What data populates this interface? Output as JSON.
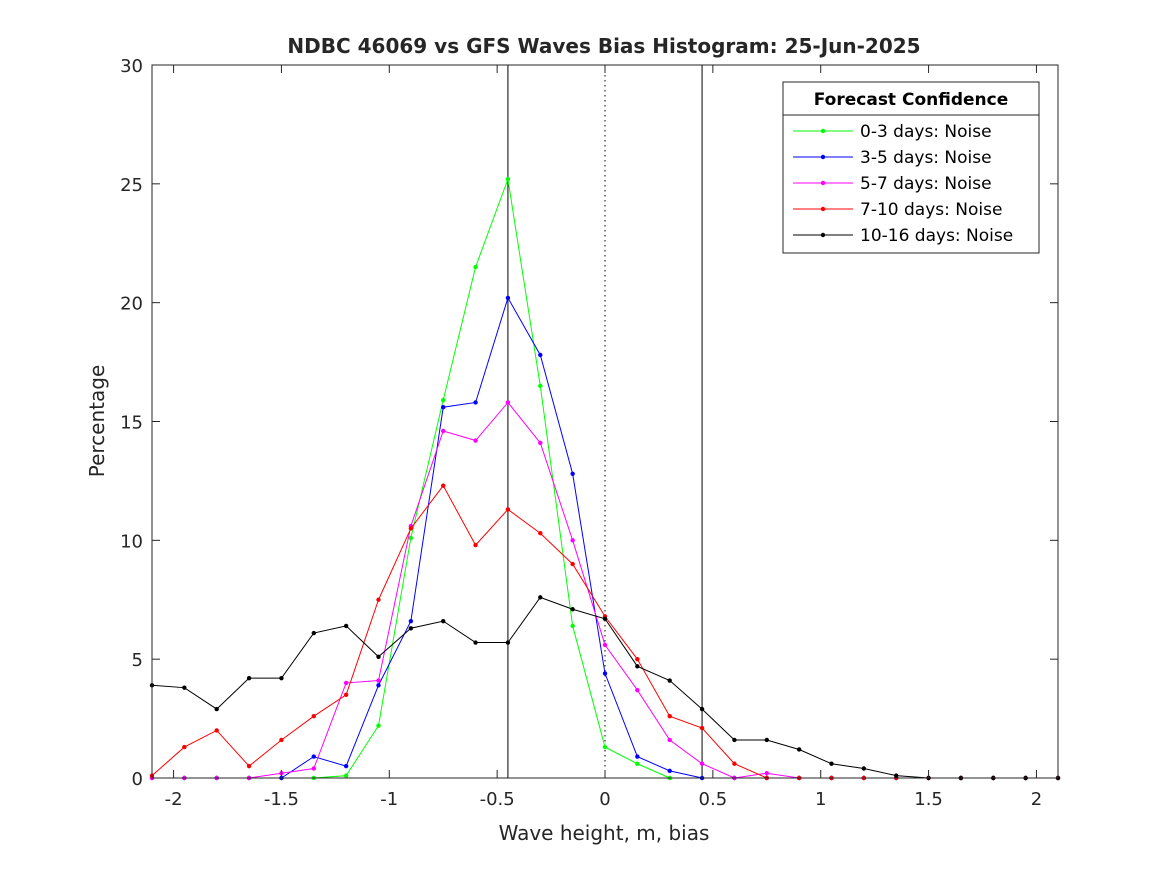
{
  "chart_data": {
    "type": "line",
    "title": "NDBC 46069 vs GFS Waves Bias Histogram: 25-Jun-2025",
    "xlabel": "Wave height, m, bias",
    "ylabel": "Percentage",
    "xlim": [
      -2.1,
      2.1
    ],
    "ylim": [
      0,
      30
    ],
    "xticks": [
      -2,
      -1.5,
      -1,
      -0.5,
      0,
      0.5,
      1,
      1.5,
      2
    ],
    "xtick_labels": [
      "-2",
      "-1.5",
      "-1",
      "-0.5",
      "0",
      "0.5",
      "1",
      "1.5",
      "2"
    ],
    "yticks": [
      0,
      5,
      10,
      15,
      20,
      25,
      30
    ],
    "ytick_labels": [
      "0",
      "5",
      "10",
      "15",
      "20",
      "25",
      "30"
    ],
    "grid": false,
    "legend_title": "Forecast Confidence",
    "legend_position": "top-right",
    "vertical_lines": [
      {
        "x": -0.45,
        "style": "solid",
        "color": "#000000"
      },
      {
        "x": 0,
        "style": "dotted",
        "color": "#000000"
      },
      {
        "x": 0.45,
        "style": "solid",
        "color": "#000000"
      }
    ],
    "x": [
      -2.1,
      -1.95,
      -1.8,
      -1.65,
      -1.5,
      -1.35,
      -1.2,
      -1.05,
      -0.9,
      -0.75,
      -0.6,
      -0.45,
      -0.3,
      -0.15,
      0,
      0.15,
      0.3,
      0.45,
      0.6,
      0.75,
      0.9,
      1.05,
      1.2,
      1.35,
      1.5,
      1.65,
      1.8,
      1.95,
      2.1
    ],
    "series": [
      {
        "name": "0-3 days: Noise",
        "color": "#00ff00",
        "values": [
          0,
          0,
          0,
          0,
          0,
          0,
          0.1,
          2.2,
          10.1,
          15.9,
          21.5,
          25.2,
          16.5,
          6.4,
          1.3,
          0.6,
          0,
          0,
          0,
          0,
          0,
          0,
          0,
          0,
          0,
          0,
          0,
          0,
          0
        ]
      },
      {
        "name": "3-5 days: Noise",
        "color": "#0000ff",
        "values": [
          0,
          0,
          0,
          0,
          0,
          0.9,
          0.5,
          3.9,
          6.6,
          15.6,
          15.8,
          20.2,
          17.8,
          12.8,
          4.4,
          0.9,
          0.3,
          0,
          0,
          0,
          0,
          0,
          0,
          0,
          0,
          0,
          0,
          0,
          0
        ]
      },
      {
        "name": "5-7 days: Noise",
        "color": "#ff00ff",
        "values": [
          0,
          0,
          0,
          0,
          0.2,
          0.4,
          4.0,
          4.1,
          10.6,
          14.6,
          14.2,
          15.8,
          14.1,
          10.0,
          5.6,
          3.7,
          1.6,
          0.6,
          0,
          0.2,
          0,
          0,
          0,
          0,
          0,
          0,
          0,
          0,
          0
        ]
      },
      {
        "name": "7-10 days: Noise",
        "color": "#ff0000",
        "values": [
          0.1,
          1.3,
          2.0,
          0.5,
          1.6,
          2.6,
          3.5,
          7.5,
          10.5,
          12.3,
          9.8,
          11.3,
          10.3,
          9.0,
          6.8,
          5.0,
          2.6,
          2.1,
          0.6,
          0,
          0,
          0,
          0,
          0,
          0,
          0,
          0,
          0,
          0
        ]
      },
      {
        "name": "10-16 days: Noise",
        "color": "#000000",
        "values": [
          3.9,
          3.8,
          2.9,
          4.2,
          4.2,
          6.1,
          6.4,
          5.1,
          6.3,
          6.6,
          5.7,
          5.7,
          7.6,
          7.1,
          6.7,
          4.7,
          4.1,
          2.9,
          1.6,
          1.6,
          1.2,
          0.6,
          0.4,
          0.1,
          0,
          0,
          0,
          0,
          0
        ]
      }
    ]
  }
}
